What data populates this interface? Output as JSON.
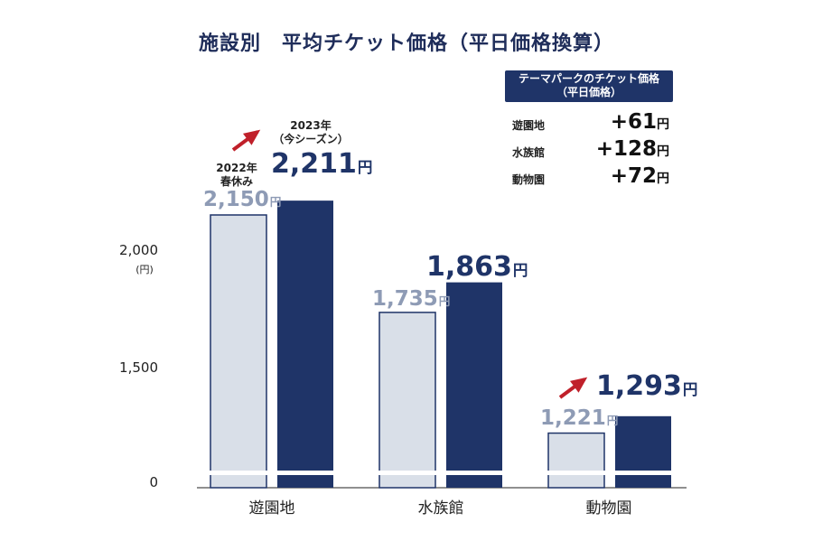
{
  "title": "施設別　平均チケット価格（平日価格換算）",
  "y_axis": {
    "ticks": [
      "2,000",
      "1,500",
      "0"
    ],
    "unit": "(円)"
  },
  "categories": [
    "遊園地",
    "水族館",
    "動物園"
  ],
  "bar_labels": {
    "prev": [
      "2,150",
      "1,735",
      "1,221"
    ],
    "curr": [
      "2,211",
      "1,863",
      "1,293"
    ],
    "unit": "円"
  },
  "notes": {
    "prev_note_line1": "2022年",
    "prev_note_line2": "春休み",
    "curr_note_line1": "2023年",
    "curr_note_line2": "（今シーズン）"
  },
  "diff_box": {
    "title_line1": "テーマパークのチケット価格",
    "title_line2": "（平日価格）",
    "rows": [
      {
        "name": "遊園地",
        "value": "+61",
        "unit": "円"
      },
      {
        "name": "水族館",
        "value": "+128",
        "unit": "円"
      },
      {
        "name": "動物園",
        "value": "+72",
        "unit": "円"
      }
    ]
  },
  "colors": {
    "prev_fill": "#d9dfe8",
    "prev_stroke": "#1f3468",
    "curr_fill": "#1f3468",
    "arrow": "#c0202a"
  },
  "chart_data": {
    "type": "bar",
    "title": "施設別　平均チケット価格（平日価格換算）",
    "categories": [
      "遊園地",
      "水族館",
      "動物園"
    ],
    "series": [
      {
        "name": "2022年 春休み",
        "values": [
          2150,
          1735,
          1221
        ]
      },
      {
        "name": "2023年（今シーズン）",
        "values": [
          2211,
          1863,
          1293
        ]
      }
    ],
    "ylabel": "(円)",
    "y_ticks": [
      0,
      1500,
      2000
    ],
    "y_axis_broken": true,
    "grid": false
  }
}
